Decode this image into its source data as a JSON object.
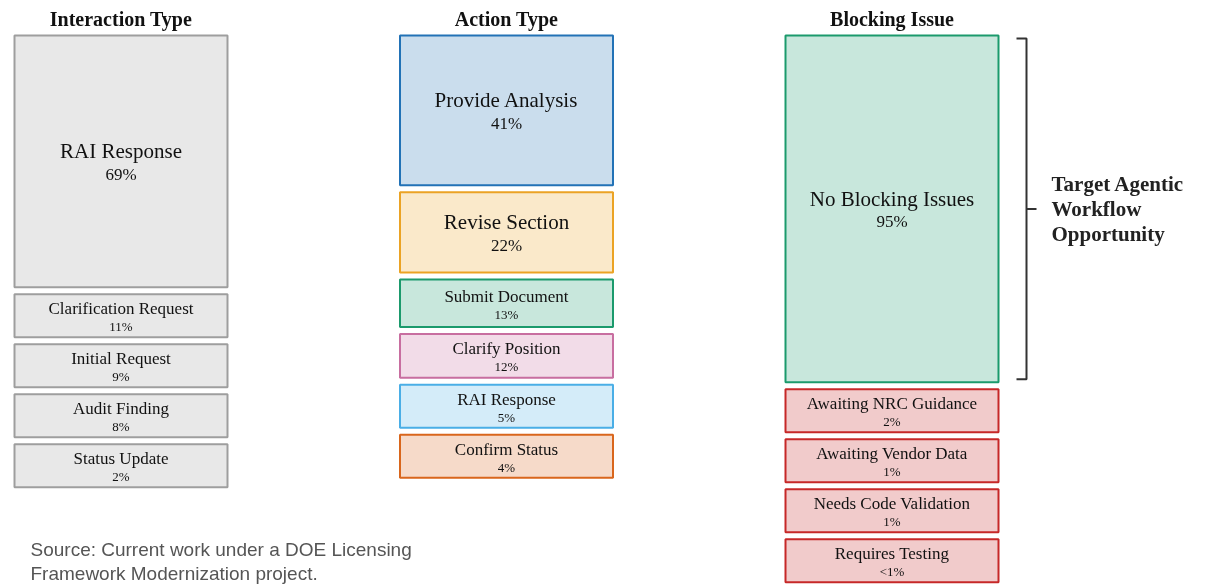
{
  "chart_data": [
    {
      "type": "other",
      "title": "Interaction Type",
      "categories": [
        "RAI Response",
        "Clarification Request",
        "Initial Request",
        "Audit Finding",
        "Status Update"
      ],
      "values": [
        69,
        11,
        9,
        8,
        2
      ],
      "value_labels": [
        "69%",
        "11%",
        "9%",
        "8%",
        "2%"
      ],
      "colors": [
        "#9e9e9e",
        "#9e9e9e",
        "#9e9e9e",
        "#9e9e9e",
        "#9e9e9e"
      ],
      "annotations": [
        "Source: Current work under a DOE Licensing Framework Modernization project."
      ]
    },
    {
      "type": "other",
      "title": "Action Type",
      "categories": [
        "Provide Analysis",
        "Revise Section",
        "Submit Document",
        "Clarify Position",
        "RAI Response",
        "Confirm Status"
      ],
      "values": [
        41,
        22,
        13,
        12,
        5,
        4
      ],
      "value_labels": [
        "41%",
        "22%",
        "13%",
        "12%",
        "5%",
        "4%"
      ],
      "colors": [
        "#2272b6",
        "#eba324",
        "#1b9a6c",
        "#c86ea0",
        "#4aaee6",
        "#d9661c"
      ]
    },
    {
      "type": "other",
      "title": "Blocking Issue",
      "categories": [
        "No Blocking Issues",
        "Awaiting NRC Guidance",
        "Awaiting Vendor Data",
        "Needs Code Validation",
        "Requires Testing"
      ],
      "values": [
        95,
        2,
        1,
        1,
        0.5
      ],
      "value_labels": [
        "95%",
        "2%",
        "1%",
        "1%",
        "<1%"
      ],
      "colors": [
        "#1b9a6c",
        "#c62828",
        "#c62828",
        "#c62828",
        "#c62828"
      ],
      "annotations": [
        "Target Agentic Workflow Opportunity"
      ]
    }
  ]
}
